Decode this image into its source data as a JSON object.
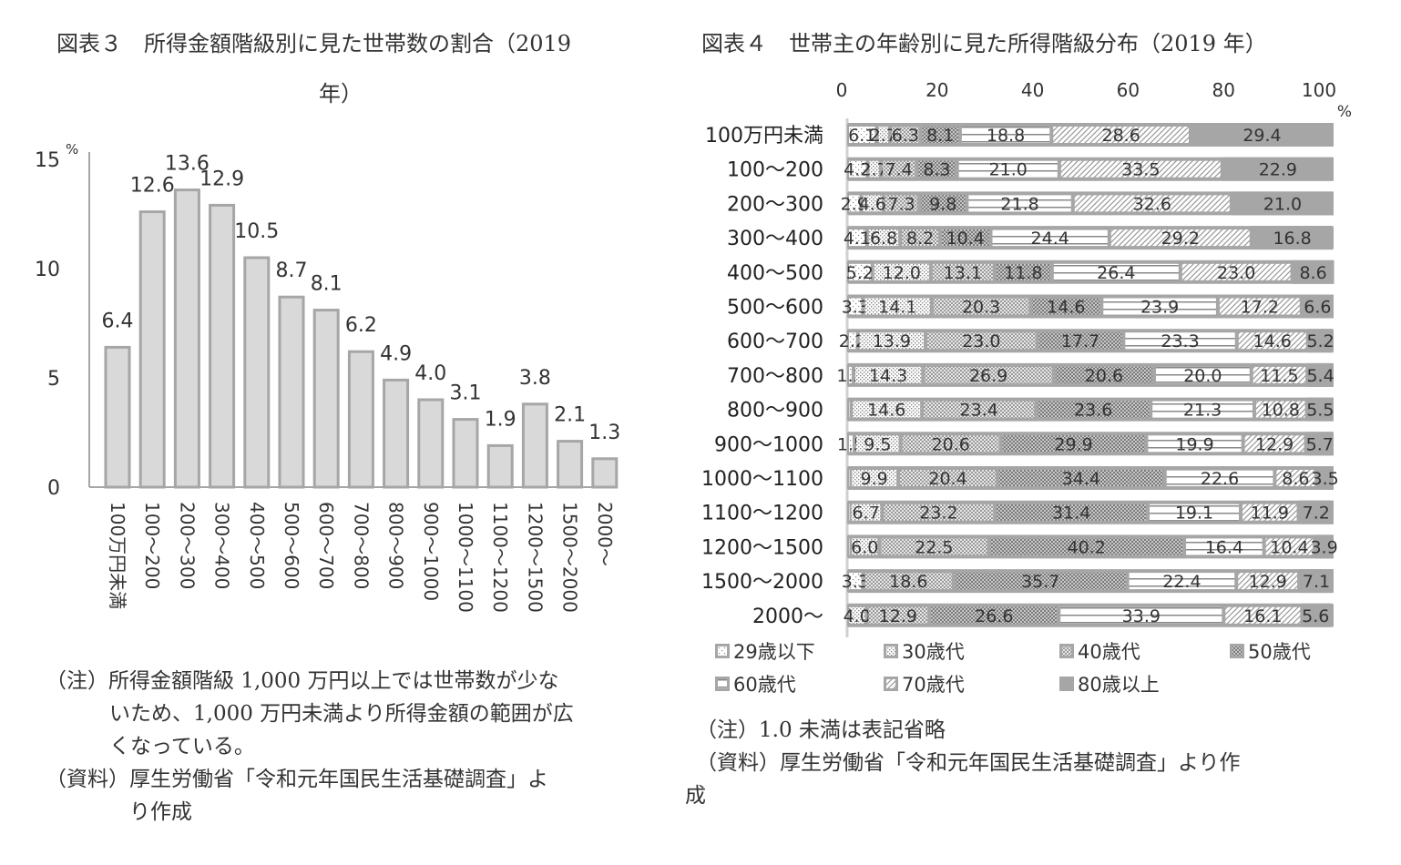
{
  "figure3": {
    "title_line1": "図表３　所得金額階級別に見た世帯数の割合（2019",
    "title_line2": "年）",
    "y_unit": "%",
    "note_label": "（注）",
    "note_text_1": "所得金額階級 1,000 万円以上では世帯数が少な",
    "note_text_2": "いため、1,000 万円未満より所得金額の範囲が広",
    "note_text_3": "くなっている。",
    "source_label": "（資料）",
    "source_text_1": "厚生労働省「令和元年国民生活基礎調査」よ",
    "source_text_2": "り作成"
  },
  "figure4": {
    "title": "図表４　世帯主の年齢別に見た所得階級分布（2019 年）",
    "x_unit": "%",
    "note": "（注）1.0 未満は表記省略",
    "source_line1": "（資料）厚生労働省「令和元年国民生活基礎調査」より作",
    "source_line2": "成"
  },
  "chart_data": [
    {
      "type": "bar",
      "title": "図表３　所得金額階級別に見た世帯数の割合（2019年）",
      "xlabel": "",
      "ylabel": "%",
      "ylim": [
        0,
        15
      ],
      "yticks": [
        0,
        5,
        10,
        15
      ],
      "grid": false,
      "categories": [
        "100万円未満",
        "100～200",
        "200～300",
        "300～400",
        "400～500",
        "500～600",
        "600～700",
        "700～800",
        "800～900",
        "900～1000",
        "1000～1100",
        "1100～1200",
        "1200～1500",
        "1500～2000",
        "2000～"
      ],
      "values": [
        6.4,
        12.6,
        13.6,
        12.9,
        10.5,
        8.7,
        8.1,
        6.2,
        4.9,
        4.0,
        3.1,
        1.9,
        3.8,
        2.1,
        1.3
      ],
      "bar_color": "#d9d9d9",
      "bar_edge_color": "#a6a6a6"
    },
    {
      "type": "bar",
      "orientation": "horizontal",
      "stacked": true,
      "title": "図表４　世帯主の年齢別に見た所得階級分布（2019 年）",
      "xlabel": "%",
      "xlim": [
        0,
        100
      ],
      "xticks": [
        0,
        20,
        40,
        60,
        80,
        100
      ],
      "legend_position": "bottom",
      "categories": [
        "100万円未満",
        "100～200",
        "200～300",
        "300～400",
        "400～500",
        "500～600",
        "600～700",
        "700～800",
        "800～900",
        "900～1000",
        "1000～1100",
        "1100～1200",
        "1200～1500",
        "1500～2000",
        "2000～"
      ],
      "series": [
        {
          "name": "29歳以下",
          "pattern": "sparse-dots",
          "values": [
            6.1,
            4.2,
            2.9,
            4.1,
            5.2,
            3.3,
            2.2,
            1.3,
            0.8,
            1.5,
            0.6,
            0.5,
            0.6,
            3.3,
            0.0
          ],
          "labels": [
            "6.1",
            "4.2",
            "2.9",
            "4.1",
            "5.2",
            "3.3",
            "2.2",
            "1.3",
            "",
            "1.5",
            "",
            "",
            "",
            "3.3",
            ""
          ]
        },
        {
          "name": "30歳代",
          "pattern": "dots",
          "values": [
            2.7,
            2.7,
            4.6,
            6.8,
            12.0,
            14.1,
            13.9,
            14.3,
            14.6,
            9.5,
            9.9,
            6.7,
            6.0,
            0.0,
            4.0
          ],
          "labels": [
            "2.7",
            "2.7",
            "4.6",
            "6.8",
            "12.0",
            "14.1",
            "13.9",
            "14.3",
            "14.6",
            "9.5",
            "9.9",
            "6.7",
            "6.0",
            "",
            "4.0"
          ]
        },
        {
          "name": "40歳代",
          "pattern": "checker-light",
          "values": [
            6.3,
            7.4,
            7.3,
            8.2,
            13.1,
            20.3,
            23.0,
            26.9,
            23.4,
            20.6,
            20.4,
            23.2,
            22.5,
            18.6,
            12.9
          ],
          "labels": [
            "6.3",
            "7.4",
            "7.3",
            "8.2",
            "13.1",
            "20.3",
            "23.0",
            "26.9",
            "23.4",
            "20.6",
            "20.4",
            "23.2",
            "22.5",
            "18.6",
            "12.9"
          ]
        },
        {
          "name": "50歳代",
          "pattern": "checker-dense",
          "values": [
            8.1,
            8.3,
            9.8,
            10.4,
            11.8,
            14.6,
            17.7,
            20.6,
            23.6,
            29.9,
            34.4,
            31.4,
            40.2,
            35.7,
            26.6
          ],
          "labels": [
            "8.1",
            "8.3",
            "9.8",
            "10.4",
            "11.8",
            "14.6",
            "17.7",
            "20.6",
            "23.6",
            "29.9",
            "34.4",
            "31.4",
            "40.2",
            "35.7",
            "26.6"
          ]
        },
        {
          "name": "60歳代",
          "pattern": "horizontal-lines",
          "values": [
            18.8,
            21.0,
            21.8,
            24.4,
            26.4,
            23.9,
            23.3,
            20.0,
            21.3,
            19.9,
            22.6,
            19.1,
            16.4,
            22.4,
            33.9
          ],
          "labels": [
            "18.8",
            "21.0",
            "21.8",
            "24.4",
            "26.4",
            "23.9",
            "23.3",
            "20.0",
            "21.3",
            "19.9",
            "22.6",
            "19.1",
            "16.4",
            "22.4",
            "33.9"
          ]
        },
        {
          "name": "70歳代",
          "pattern": "diagonal-lines",
          "values": [
            28.6,
            33.5,
            32.6,
            29.2,
            23.0,
            17.2,
            14.6,
            11.5,
            10.8,
            12.9,
            8.6,
            11.9,
            10.4,
            12.9,
            16.1
          ],
          "labels": [
            "28.6",
            "33.5",
            "32.6",
            "29.2",
            "23.0",
            "17.2",
            "14.6",
            "11.5",
            "10.8",
            "12.9",
            "8.6",
            "11.9",
            "10.4",
            "12.9",
            "16.1"
          ]
        },
        {
          "name": "80歳以上",
          "pattern": "solid-gray",
          "values": [
            29.4,
            22.9,
            21.0,
            16.8,
            8.6,
            6.6,
            5.2,
            5.4,
            5.5,
            5.7,
            3.5,
            7.2,
            3.9,
            7.1,
            5.6
          ],
          "labels": [
            "29.4",
            "22.9",
            "21.0",
            "16.8",
            "8.6",
            "6.6",
            "5.2",
            "5.4",
            "5.5",
            "5.7",
            "3.5",
            "7.2",
            "3.9",
            "7.1",
            "5.6"
          ]
        }
      ],
      "colors": {
        "frame": "#a6a6a6",
        "fill_dark": "#a6a6a6",
        "fill_light": "#ffffff"
      }
    }
  ]
}
